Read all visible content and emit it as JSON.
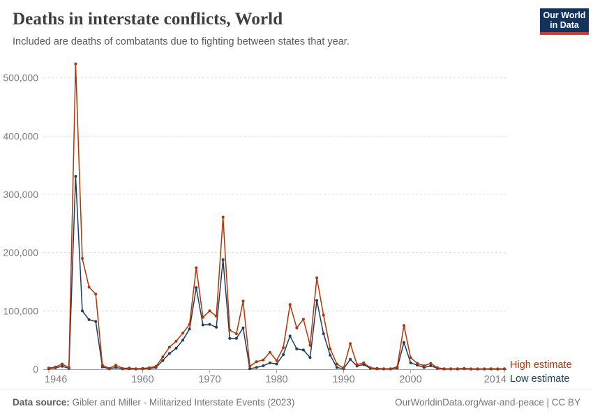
{
  "header": {
    "title": "Deaths in interstate conflicts, World",
    "subtitle": "Included are deaths of combatants due to fighting between states that year.",
    "logo": {
      "line1": "Our World",
      "line2": "in Data",
      "bg_color": "#13335C",
      "accent_color": "#D8352A"
    }
  },
  "chart_data": {
    "type": "line",
    "title": "Deaths in interstate conflicts, World",
    "xlabel": "",
    "ylabel": "",
    "xlim": [
      1946,
      2014
    ],
    "ylim": [
      0,
      500000
    ],
    "grid": "horizontal-dashed",
    "legend_position": "right of line ends",
    "x": [
      1946,
      1947,
      1948,
      1949,
      1950,
      1951,
      1952,
      1953,
      1954,
      1955,
      1956,
      1957,
      1958,
      1959,
      1960,
      1961,
      1962,
      1963,
      1964,
      1965,
      1966,
      1967,
      1968,
      1969,
      1970,
      1971,
      1972,
      1973,
      1974,
      1975,
      1976,
      1977,
      1978,
      1979,
      1980,
      1981,
      1982,
      1983,
      1984,
      1985,
      1986,
      1987,
      1988,
      1989,
      1990,
      1991,
      1992,
      1993,
      1994,
      1995,
      1996,
      1997,
      1998,
      1999,
      2000,
      2001,
      2002,
      2003,
      2004,
      2005,
      2006,
      2007,
      2008,
      2009,
      2010,
      2011,
      2012,
      2013,
      2014
    ],
    "series": [
      {
        "name": "Low estimate",
        "color": "#1D3D63",
        "values": [
          1000,
          2500,
          5000,
          1500,
          331000,
          100000,
          85000,
          82000,
          4000,
          700,
          3000,
          700,
          1000,
          500,
          700,
          1200,
          3000,
          15000,
          27000,
          36000,
          50000,
          69000,
          140000,
          76000,
          77000,
          72000,
          188000,
          53000,
          53000,
          71000,
          1000,
          3000,
          6000,
          11000,
          9000,
          25000,
          57000,
          35000,
          33000,
          20000,
          118000,
          61000,
          24000,
          3000,
          800,
          17000,
          5500,
          8000,
          1500,
          700,
          500,
          500,
          2000,
          46000,
          11000,
          7000,
          3000,
          6000,
          1500,
          500,
          500,
          500,
          800,
          300,
          300,
          300,
          500,
          300,
          500
        ]
      },
      {
        "name": "High estimate",
        "color": "#B13507",
        "values": [
          2000,
          4000,
          9000,
          3000,
          524000,
          190000,
          141000,
          129000,
          7000,
          1500,
          7000,
          1500,
          2000,
          1000,
          1500,
          2500,
          5000,
          21000,
          38000,
          48000,
          62000,
          77000,
          174000,
          89000,
          100000,
          91000,
          261000,
          67000,
          61000,
          117000,
          5000,
          13000,
          16000,
          29000,
          15000,
          37000,
          111000,
          71000,
          86000,
          41000,
          157000,
          93000,
          35000,
          9000,
          2000,
          44000,
          8000,
          11000,
          2500,
          1500,
          1000,
          1000,
          4000,
          75000,
          20000,
          10000,
          6000,
          10000,
          2500,
          1000,
          1000,
          1000,
          1500,
          700,
          700,
          700,
          1000,
          700,
          1000
        ]
      }
    ],
    "xticks": [
      {
        "v": 1946,
        "label": "1946"
      },
      {
        "v": 1960,
        "label": "1960"
      },
      {
        "v": 1970,
        "label": "1970"
      },
      {
        "v": 1980,
        "label": "1980"
      },
      {
        "v": 1990,
        "label": "1990"
      },
      {
        "v": 2000,
        "label": "2000"
      },
      {
        "v": 2014,
        "label": "2014"
      }
    ],
    "yticks": [
      {
        "v": 0,
        "label": "0"
      },
      {
        "v": 100000,
        "label": "100,000"
      },
      {
        "v": 200000,
        "label": "200,000"
      },
      {
        "v": 300000,
        "label": "300,000"
      },
      {
        "v": 400000,
        "label": "400,000"
      },
      {
        "v": 500000,
        "label": "500,000"
      }
    ],
    "legend": [
      {
        "label": "High estimate",
        "color": "#B13507"
      },
      {
        "label": "Low estimate",
        "color": "#1D3D63"
      }
    ]
  },
  "footer": {
    "datasource_label": "Data source:",
    "datasource_value": "Gibler and Miller - Militarized Interstate Events (2023)",
    "credit": "OurWorldinData.org/war-and-peace | CC BY"
  },
  "colors": {
    "grid": "#dddddd",
    "axis": "#a3a3a3",
    "tick_text": "#7d7d7d"
  }
}
